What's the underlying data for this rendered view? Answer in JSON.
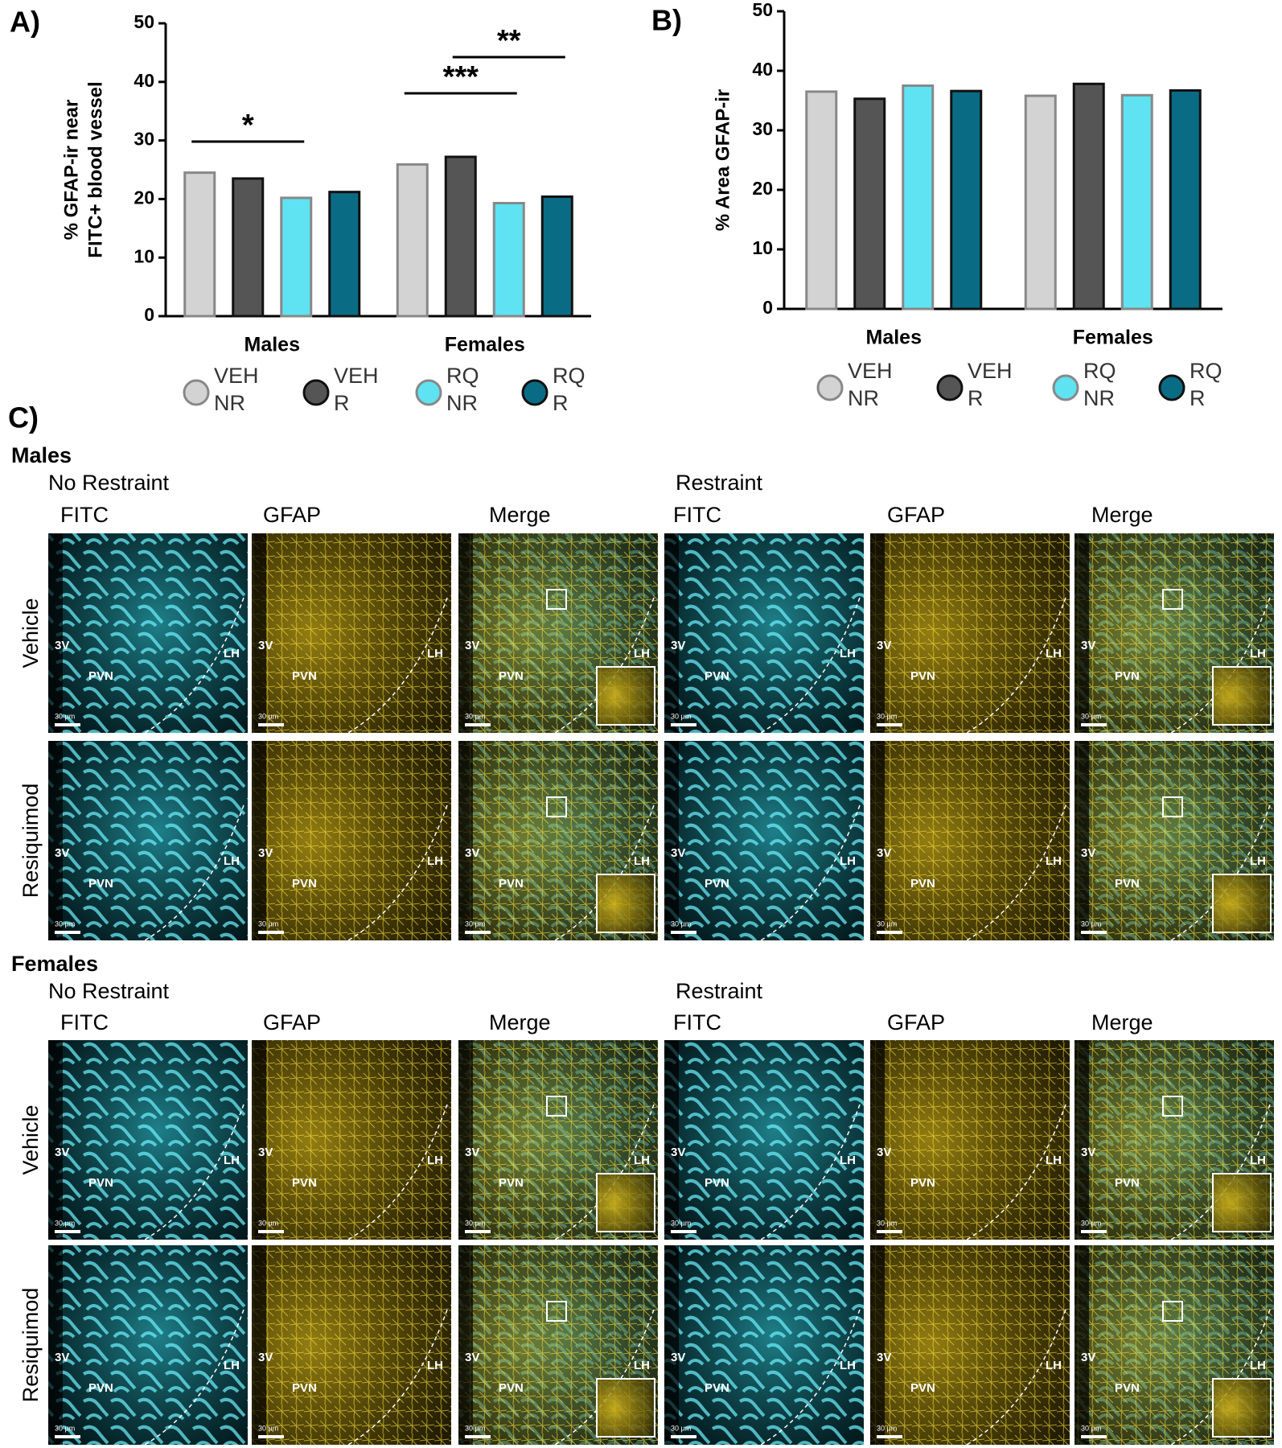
{
  "chart_data": [
    {
      "type": "bar",
      "panel_label": "A)",
      "ylabel": [
        "% GFAP-ir near",
        "FITC+ blood vessel"
      ],
      "categories": [
        "Males",
        "Females"
      ],
      "series": [
        {
          "name": "VEH NR",
          "color": "#d3d3d3",
          "values": [
            24.5,
            25.9
          ]
        },
        {
          "name": "VEH R",
          "color": "#555555",
          "values": [
            23.5,
            27.2
          ]
        },
        {
          "name": "RQ NR",
          "color": "#5fe2f2",
          "values": [
            20.2,
            19.3
          ]
        },
        {
          "name": "RQ R",
          "color": "#0a6b84",
          "values": [
            21.2,
            20.4
          ]
        }
      ],
      "ylim": [
        0,
        50
      ],
      "yticks": [
        0,
        10,
        20,
        30,
        40,
        50
      ],
      "annotations": [
        "*",
        "***",
        "**"
      ]
    },
    {
      "type": "bar",
      "panel_label": "B)",
      "ylabel": [
        "% Area GFAP-ir"
      ],
      "categories": [
        "Males",
        "Females"
      ],
      "series": [
        {
          "name": "VEH NR",
          "color": "#d3d3d3",
          "values": [
            36.5,
            35.8
          ]
        },
        {
          "name": "VEH R",
          "color": "#555555",
          "values": [
            35.3,
            37.8
          ]
        },
        {
          "name": "RQ NR",
          "color": "#5fe2f2",
          "values": [
            37.5,
            35.9
          ]
        },
        {
          "name": "RQ R",
          "color": "#0a6b84",
          "values": [
            36.6,
            36.7
          ]
        }
      ],
      "ylim": [
        0,
        50
      ],
      "yticks": [
        0,
        10,
        20,
        30,
        40,
        50
      ]
    }
  ],
  "panel_c": {
    "label": "C)",
    "sections": [
      {
        "title": "Males",
        "conditions": [
          "No Restraint",
          "Restraint"
        ],
        "channels": [
          "FITC",
          "GFAP",
          "Merge"
        ],
        "rows": [
          "Vehicle",
          "Resiquimod"
        ]
      },
      {
        "title": "Females",
        "conditions": [
          "No Restraint",
          "Restraint"
        ],
        "channels": [
          "FITC",
          "GFAP",
          "Merge"
        ],
        "rows": [
          "Vehicle",
          "Resiquimod"
        ]
      }
    ],
    "region_labels": [
      "3V",
      "PVN",
      "LH"
    ],
    "scale_bar": "30 µm"
  }
}
